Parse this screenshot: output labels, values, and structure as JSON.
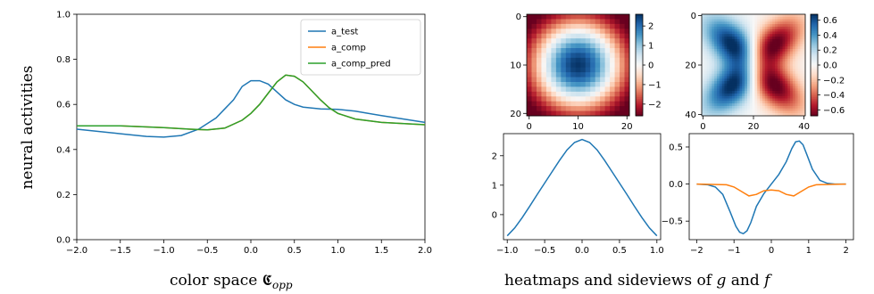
{
  "captions": {
    "left": "color space 𝕮",
    "left_sub": "opp",
    "right_prefix": "heatmaps and sideviews of ",
    "right_g": "g",
    "right_and": " and ",
    "right_f": "f"
  },
  "colors": {
    "blue": "#1f77b4",
    "orange": "#ff7f0e",
    "green": "#2ca02c",
    "colormap": "RdBu"
  },
  "chart_data": [
    {
      "id": "main",
      "type": "line",
      "ylabel": "neural activities",
      "xlim": [
        -2.0,
        2.0
      ],
      "ylim": [
        0.0,
        1.0
      ],
      "xticks": [
        "−2.0",
        "−1.5",
        "−1.0",
        "−0.5",
        "0.0",
        "0.5",
        "1.0",
        "1.5",
        "2.0"
      ],
      "yticks": [
        "0.0",
        "0.2",
        "0.4",
        "0.6",
        "0.8",
        "1.0"
      ],
      "legend_position": "top-right",
      "grid": false,
      "series": [
        {
          "name": "a_test",
          "color": "#1f77b4",
          "x": [
            -2.0,
            -1.5,
            -1.2,
            -1.0,
            -0.8,
            -0.6,
            -0.4,
            -0.2,
            -0.1,
            0.0,
            0.1,
            0.2,
            0.3,
            0.4,
            0.5,
            0.6,
            0.8,
            1.0,
            1.2,
            1.5,
            2.0
          ],
          "y": [
            0.49,
            0.47,
            0.458,
            0.455,
            0.462,
            0.49,
            0.54,
            0.62,
            0.68,
            0.705,
            0.705,
            0.69,
            0.655,
            0.62,
            0.6,
            0.588,
            0.58,
            0.578,
            0.57,
            0.55,
            0.52
          ]
        },
        {
          "name": "a_comp",
          "color": "#ff7f0e",
          "x": [
            -2.0,
            -1.5,
            -1.0,
            -0.7,
            -0.5,
            -0.3,
            -0.1,
            0.0,
            0.1,
            0.2,
            0.3,
            0.4,
            0.5,
            0.6,
            0.7,
            0.8,
            0.9,
            1.0,
            1.2,
            1.5,
            2.0
          ],
          "y": [
            0.505,
            0.505,
            0.497,
            0.49,
            0.487,
            0.495,
            0.53,
            0.56,
            0.6,
            0.65,
            0.7,
            0.73,
            0.725,
            0.7,
            0.66,
            0.62,
            0.585,
            0.56,
            0.535,
            0.52,
            0.51
          ]
        },
        {
          "name": "a_comp_pred",
          "color": "#2ca02c",
          "x": [
            -2.0,
            -1.5,
            -1.0,
            -0.7,
            -0.5,
            -0.3,
            -0.1,
            0.0,
            0.1,
            0.2,
            0.3,
            0.4,
            0.5,
            0.6,
            0.7,
            0.8,
            0.9,
            1.0,
            1.2,
            1.5,
            2.0
          ],
          "y": [
            0.505,
            0.505,
            0.497,
            0.49,
            0.487,
            0.495,
            0.53,
            0.56,
            0.6,
            0.65,
            0.7,
            0.73,
            0.725,
            0.7,
            0.66,
            0.62,
            0.585,
            0.56,
            0.535,
            0.52,
            0.51
          ]
        }
      ]
    },
    {
      "id": "heatmap_g",
      "type": "heatmap",
      "grid_size": 21,
      "xticks": [
        "0",
        "10",
        "20"
      ],
      "yticks": [
        "0",
        "10",
        "20"
      ],
      "colorbar_range": [
        -2.6,
        2.6
      ],
      "colorbar_ticks": [
        "2",
        "1",
        "0",
        "−1",
        "−2"
      ]
    },
    {
      "id": "heatmap_f",
      "type": "heatmap",
      "grid_size": 41,
      "xticks": [
        "0",
        "20",
        "40"
      ],
      "yticks": [
        "0",
        "20",
        "40"
      ],
      "colorbar_range": [
        -0.68,
        0.68
      ],
      "colorbar_ticks": [
        "0.6",
        "0.4",
        "0.2",
        "0.0",
        "−0.2",
        "−0.4",
        "−0.6"
      ]
    },
    {
      "id": "side_g",
      "type": "line",
      "xlim": [
        -1.05,
        1.05
      ],
      "ylim": [
        -0.85,
        2.75
      ],
      "xticks": [
        "−1.0",
        "−0.5",
        "0.0",
        "0.5",
        "1.0"
      ],
      "yticks": [
        "2",
        "1",
        "0"
      ],
      "series": [
        {
          "color": "#1f77b4",
          "x": [
            -1.0,
            -0.9,
            -0.8,
            -0.7,
            -0.6,
            -0.5,
            -0.4,
            -0.3,
            -0.2,
            -0.1,
            0.0,
            0.1,
            0.2,
            0.3,
            0.4,
            0.5,
            0.6,
            0.7,
            0.8,
            0.9,
            1.0
          ],
          "y": [
            -0.72,
            -0.45,
            -0.1,
            0.28,
            0.68,
            1.07,
            1.46,
            1.85,
            2.2,
            2.45,
            2.55,
            2.45,
            2.2,
            1.85,
            1.46,
            1.07,
            0.68,
            0.28,
            -0.1,
            -0.45,
            -0.72
          ]
        }
      ]
    },
    {
      "id": "side_f",
      "type": "line",
      "xlim": [
        -2.2,
        2.2
      ],
      "ylim": [
        -0.75,
        0.68
      ],
      "xticks": [
        "−2",
        "−1",
        "0",
        "1",
        "2"
      ],
      "yticks": [
        "0.5",
        "0.0",
        "−0.5"
      ],
      "series": [
        {
          "color": "#1f77b4",
          "x": [
            -2.0,
            -1.7,
            -1.5,
            -1.3,
            -1.1,
            -0.95,
            -0.85,
            -0.75,
            -0.65,
            -0.55,
            -0.4,
            -0.2,
            0.0,
            0.2,
            0.4,
            0.55,
            0.65,
            0.75,
            0.85,
            0.95,
            1.1,
            1.3,
            1.5,
            1.7,
            2.0
          ],
          "y": [
            0.0,
            -0.01,
            -0.04,
            -0.14,
            -0.38,
            -0.57,
            -0.65,
            -0.67,
            -0.63,
            -0.52,
            -0.3,
            -0.13,
            0.0,
            0.13,
            0.3,
            0.48,
            0.57,
            0.58,
            0.53,
            0.4,
            0.2,
            0.05,
            0.01,
            0.0,
            0.0
          ]
        },
        {
          "color": "#ff7f0e",
          "x": [
            -2.0,
            -1.2,
            -1.0,
            -0.8,
            -0.6,
            -0.4,
            -0.2,
            0.0,
            0.2,
            0.4,
            0.6,
            0.8,
            1.0,
            1.2,
            2.0
          ],
          "y": [
            0.0,
            -0.01,
            -0.04,
            -0.1,
            -0.16,
            -0.14,
            -0.09,
            -0.08,
            -0.09,
            -0.14,
            -0.16,
            -0.1,
            -0.04,
            -0.01,
            0.0
          ]
        }
      ]
    }
  ]
}
